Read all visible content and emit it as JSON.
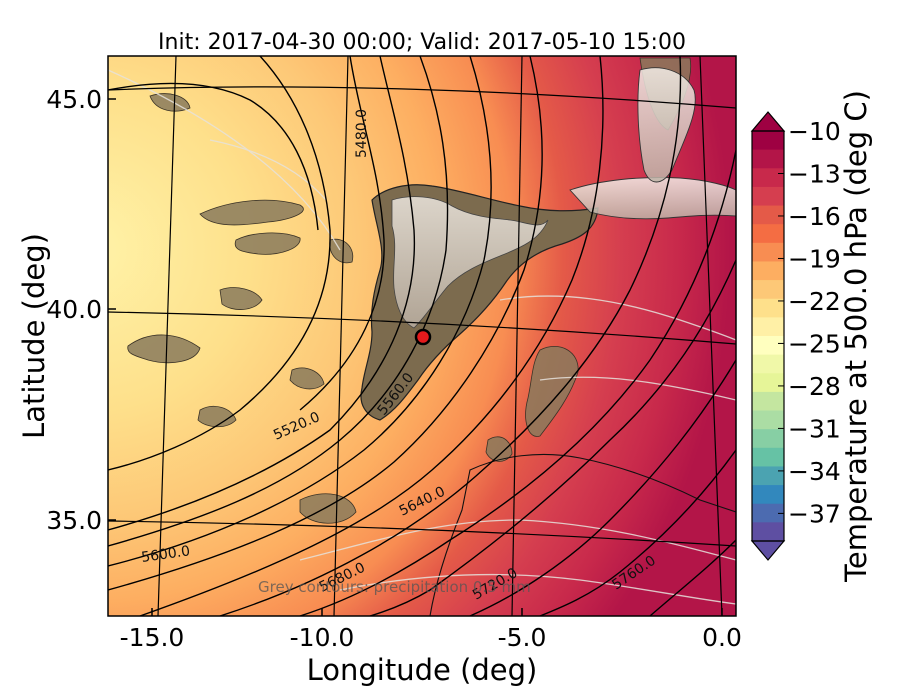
{
  "title": "Init: 2017-04-30 00:00; Valid: 2017-05-10 15:00",
  "footnote": "Grey contours: precipitation 0.5 mm",
  "axes": {
    "xlabel": "Longitude (deg)",
    "ylabel": "Latitude (deg)",
    "xticks": [
      "-15.0",
      "-10.0",
      "-5.0",
      "0.0"
    ],
    "yticks": [
      "45.0",
      "40.0",
      "35.0"
    ]
  },
  "colorbar": {
    "label": "Temperature at 500.0 hPa (deg C)",
    "ticks": [
      "−10",
      "−13",
      "−16",
      "−19",
      "−22",
      "−25",
      "−28",
      "−31",
      "−34",
      "−37"
    ],
    "colors": [
      "#9e0142",
      "#b31548",
      "#c8294b",
      "#d53e4f",
      "#e45a48",
      "#f46d43",
      "#f88d52",
      "#fdae61",
      "#fdc877",
      "#fee08b",
      "#fff0a6",
      "#ffffbf",
      "#f0f8a8",
      "#e6f598",
      "#c4e6a0",
      "#abdda4",
      "#87cfa4",
      "#66c2a5",
      "#4ba3b1",
      "#3288bd",
      "#4c6bb0",
      "#5e4fa2"
    ]
  },
  "map": {
    "point_marker": {
      "lon": -7.7,
      "lat": 39.3,
      "color": "#e41a1c"
    },
    "contour_labels": [
      "5480.0",
      "5520.0",
      "5560.0",
      "5600.0",
      "5640.0",
      "5680.0",
      "5720.0",
      "5760.0"
    ]
  }
}
